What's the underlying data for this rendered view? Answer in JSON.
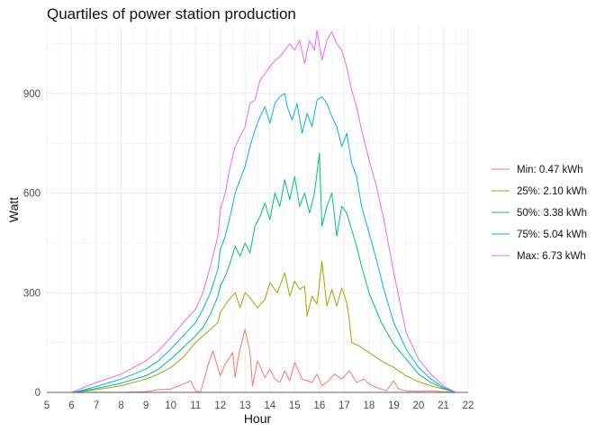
{
  "chart_data": {
    "type": "line",
    "title": "Quartiles of power station production",
    "xlabel": "Hour",
    "ylabel": "Watt",
    "xlim": [
      5,
      22
    ],
    "ylim": [
      0,
      1100
    ],
    "xticks": [
      5,
      6,
      7,
      8,
      9,
      10,
      11,
      12,
      13,
      14,
      15,
      16,
      17,
      18,
      19,
      20,
      21,
      22
    ],
    "yticks": [
      0,
      300,
      600,
      900
    ],
    "grid": true,
    "legend_position": "right",
    "series": [
      {
        "name": "Min: 0.47 kWh",
        "color": "#F8766D",
        "points": [
          [
            6.2,
            0
          ],
          [
            7,
            0
          ],
          [
            8,
            0
          ],
          [
            9,
            2
          ],
          [
            9.5,
            8
          ],
          [
            10,
            10
          ],
          [
            10.5,
            25
          ],
          [
            10.8,
            35
          ],
          [
            11,
            5
          ],
          [
            11.2,
            0
          ],
          [
            11.5,
            80
          ],
          [
            11.7,
            125
          ],
          [
            12,
            50
          ],
          [
            12.2,
            85
          ],
          [
            12.5,
            120
          ],
          [
            12.6,
            45
          ],
          [
            12.7,
            95
          ],
          [
            12.8,
            130
          ],
          [
            13,
            190
          ],
          [
            13.2,
            120
          ],
          [
            13.3,
            20
          ],
          [
            13.5,
            95
          ],
          [
            13.8,
            45
          ],
          [
            14,
            70
          ],
          [
            14.2,
            40
          ],
          [
            14.4,
            30
          ],
          [
            14.6,
            65
          ],
          [
            14.8,
            35
          ],
          [
            15,
            90
          ],
          [
            15.3,
            40
          ],
          [
            15.5,
            35
          ],
          [
            15.7,
            30
          ],
          [
            15.9,
            55
          ],
          [
            16.1,
            20
          ],
          [
            16.3,
            30
          ],
          [
            16.6,
            55
          ],
          [
            16.9,
            40
          ],
          [
            17.2,
            65
          ],
          [
            17.5,
            30
          ],
          [
            17.8,
            40
          ],
          [
            18,
            25
          ],
          [
            18.3,
            15
          ],
          [
            18.7,
            5
          ],
          [
            19,
            35
          ],
          [
            19.2,
            10
          ],
          [
            19.5,
            5
          ],
          [
            20,
            3
          ],
          [
            20.5,
            5
          ],
          [
            21,
            2
          ],
          [
            21.5,
            0
          ]
        ]
      },
      {
        "name": "25%: 2.10 kWh",
        "color": "#A3A500",
        "points": [
          [
            6.1,
            0
          ],
          [
            7,
            8
          ],
          [
            8,
            20
          ],
          [
            9,
            40
          ],
          [
            9.5,
            55
          ],
          [
            10,
            75
          ],
          [
            10.5,
            105
          ],
          [
            11,
            150
          ],
          [
            11.3,
            170
          ],
          [
            11.6,
            190
          ],
          [
            11.9,
            210
          ],
          [
            12,
            240
          ],
          [
            12.3,
            275
          ],
          [
            12.6,
            300
          ],
          [
            12.8,
            255
          ],
          [
            13,
            300
          ],
          [
            13.2,
            285
          ],
          [
            13.5,
            255
          ],
          [
            13.8,
            280
          ],
          [
            14,
            330
          ],
          [
            14.3,
            300
          ],
          [
            14.6,
            360
          ],
          [
            14.8,
            290
          ],
          [
            15,
            335
          ],
          [
            15.2,
            310
          ],
          [
            15.4,
            320
          ],
          [
            15.5,
            230
          ],
          [
            15.7,
            290
          ],
          [
            15.9,
            265
          ],
          [
            16.1,
            395
          ],
          [
            16.3,
            260
          ],
          [
            16.5,
            310
          ],
          [
            16.7,
            260
          ],
          [
            16.9,
            315
          ],
          [
            17.1,
            270
          ],
          [
            17.2,
            220
          ],
          [
            17.3,
            150
          ],
          [
            17.6,
            140
          ],
          [
            18,
            120
          ],
          [
            18.5,
            95
          ],
          [
            19,
            75
          ],
          [
            19.5,
            50
          ],
          [
            20,
            32
          ],
          [
            20.5,
            20
          ],
          [
            21,
            10
          ],
          [
            21.5,
            0
          ]
        ]
      },
      {
        "name": "50%: 3.38 kWh",
        "color": "#00BF7D",
        "points": [
          [
            6.1,
            0
          ],
          [
            7,
            12
          ],
          [
            8,
            28
          ],
          [
            9,
            50
          ],
          [
            9.5,
            70
          ],
          [
            10,
            100
          ],
          [
            10.5,
            135
          ],
          [
            11,
            170
          ],
          [
            11.3,
            195
          ],
          [
            11.6,
            235
          ],
          [
            11.9,
            290
          ],
          [
            12,
            320
          ],
          [
            12.2,
            350
          ],
          [
            12.4,
            390
          ],
          [
            12.6,
            440
          ],
          [
            12.8,
            410
          ],
          [
            13,
            450
          ],
          [
            13.2,
            420
          ],
          [
            13.4,
            500
          ],
          [
            13.6,
            530
          ],
          [
            13.8,
            570
          ],
          [
            14,
            520
          ],
          [
            14.2,
            600
          ],
          [
            14.4,
            560
          ],
          [
            14.6,
            640
          ],
          [
            14.8,
            580
          ],
          [
            15,
            650
          ],
          [
            15.2,
            560
          ],
          [
            15.4,
            600
          ],
          [
            15.6,
            540
          ],
          [
            15.8,
            600
          ],
          [
            16,
            720
          ],
          [
            16.1,
            500
          ],
          [
            16.3,
            560
          ],
          [
            16.5,
            600
          ],
          [
            16.7,
            470
          ],
          [
            16.9,
            560
          ],
          [
            17.1,
            540
          ],
          [
            17.3,
            490
          ],
          [
            17.5,
            440
          ],
          [
            17.7,
            380
          ],
          [
            18,
            300
          ],
          [
            18.5,
            210
          ],
          [
            19,
            145
          ],
          [
            19.5,
            100
          ],
          [
            20,
            55
          ],
          [
            20.5,
            30
          ],
          [
            21,
            12
          ],
          [
            21.5,
            0
          ]
        ]
      },
      {
        "name": "75%: 5.04 kWh",
        "color": "#00B0F6",
        "points": [
          [
            6.1,
            0
          ],
          [
            7,
            18
          ],
          [
            8,
            40
          ],
          [
            9,
            70
          ],
          [
            9.5,
            95
          ],
          [
            10,
            130
          ],
          [
            10.5,
            170
          ],
          [
            11,
            210
          ],
          [
            11.3,
            250
          ],
          [
            11.6,
            300
          ],
          [
            11.9,
            370
          ],
          [
            12,
            430
          ],
          [
            12.2,
            470
          ],
          [
            12.4,
            530
          ],
          [
            12.6,
            600
          ],
          [
            12.8,
            640
          ],
          [
            13,
            680
          ],
          [
            13.2,
            740
          ],
          [
            13.4,
            790
          ],
          [
            13.6,
            830
          ],
          [
            13.8,
            860
          ],
          [
            14,
            810
          ],
          [
            14.2,
            870
          ],
          [
            14.4,
            890
          ],
          [
            14.6,
            900
          ],
          [
            14.7,
            860
          ],
          [
            14.9,
            820
          ],
          [
            15.1,
            870
          ],
          [
            15.3,
            780
          ],
          [
            15.5,
            840
          ],
          [
            15.7,
            800
          ],
          [
            15.9,
            880
          ],
          [
            16.1,
            890
          ],
          [
            16.3,
            870
          ],
          [
            16.5,
            830
          ],
          [
            16.7,
            800
          ],
          [
            16.9,
            740
          ],
          [
            17.1,
            780
          ],
          [
            17.3,
            690
          ],
          [
            17.5,
            650
          ],
          [
            17.7,
            560
          ],
          [
            18,
            480
          ],
          [
            18.3,
            400
          ],
          [
            18.6,
            310
          ],
          [
            19,
            210
          ],
          [
            19.5,
            130
          ],
          [
            20,
            75
          ],
          [
            20.5,
            40
          ],
          [
            21,
            15
          ],
          [
            21.5,
            0
          ]
        ]
      },
      {
        "name": "Max: 6.73 kWh",
        "color": "#E76BF3",
        "points": [
          [
            6,
            0
          ],
          [
            7,
            30
          ],
          [
            8,
            55
          ],
          [
            9,
            95
          ],
          [
            9.5,
            125
          ],
          [
            10,
            165
          ],
          [
            10.5,
            210
          ],
          [
            11,
            250
          ],
          [
            11.3,
            300
          ],
          [
            11.6,
            380
          ],
          [
            11.9,
            470
          ],
          [
            12,
            550
          ],
          [
            12.2,
            600
          ],
          [
            12.4,
            680
          ],
          [
            12.6,
            740
          ],
          [
            12.8,
            770
          ],
          [
            13,
            800
          ],
          [
            13.2,
            870
          ],
          [
            13.4,
            880
          ],
          [
            13.6,
            940
          ],
          [
            13.8,
            960
          ],
          [
            14,
            980
          ],
          [
            14.2,
            1000
          ],
          [
            14.4,
            1010
          ],
          [
            14.6,
            1030
          ],
          [
            14.8,
            1050
          ],
          [
            15,
            1030
          ],
          [
            15.2,
            1060
          ],
          [
            15.4,
            990
          ],
          [
            15.6,
            1060
          ],
          [
            15.8,
            1030
          ],
          [
            15.9,
            1090
          ],
          [
            16.1,
            1000
          ],
          [
            16.3,
            1060
          ],
          [
            16.5,
            1085
          ],
          [
            16.7,
            1050
          ],
          [
            16.9,
            1030
          ],
          [
            17.1,
            980
          ],
          [
            17.3,
            910
          ],
          [
            17.5,
            860
          ],
          [
            17.7,
            790
          ],
          [
            18,
            700
          ],
          [
            18.3,
            620
          ],
          [
            18.6,
            520
          ],
          [
            19,
            360
          ],
          [
            19.5,
            180
          ],
          [
            20,
            100
          ],
          [
            20.5,
            55
          ],
          [
            21,
            20
          ],
          [
            21.5,
            0
          ]
        ]
      }
    ]
  }
}
